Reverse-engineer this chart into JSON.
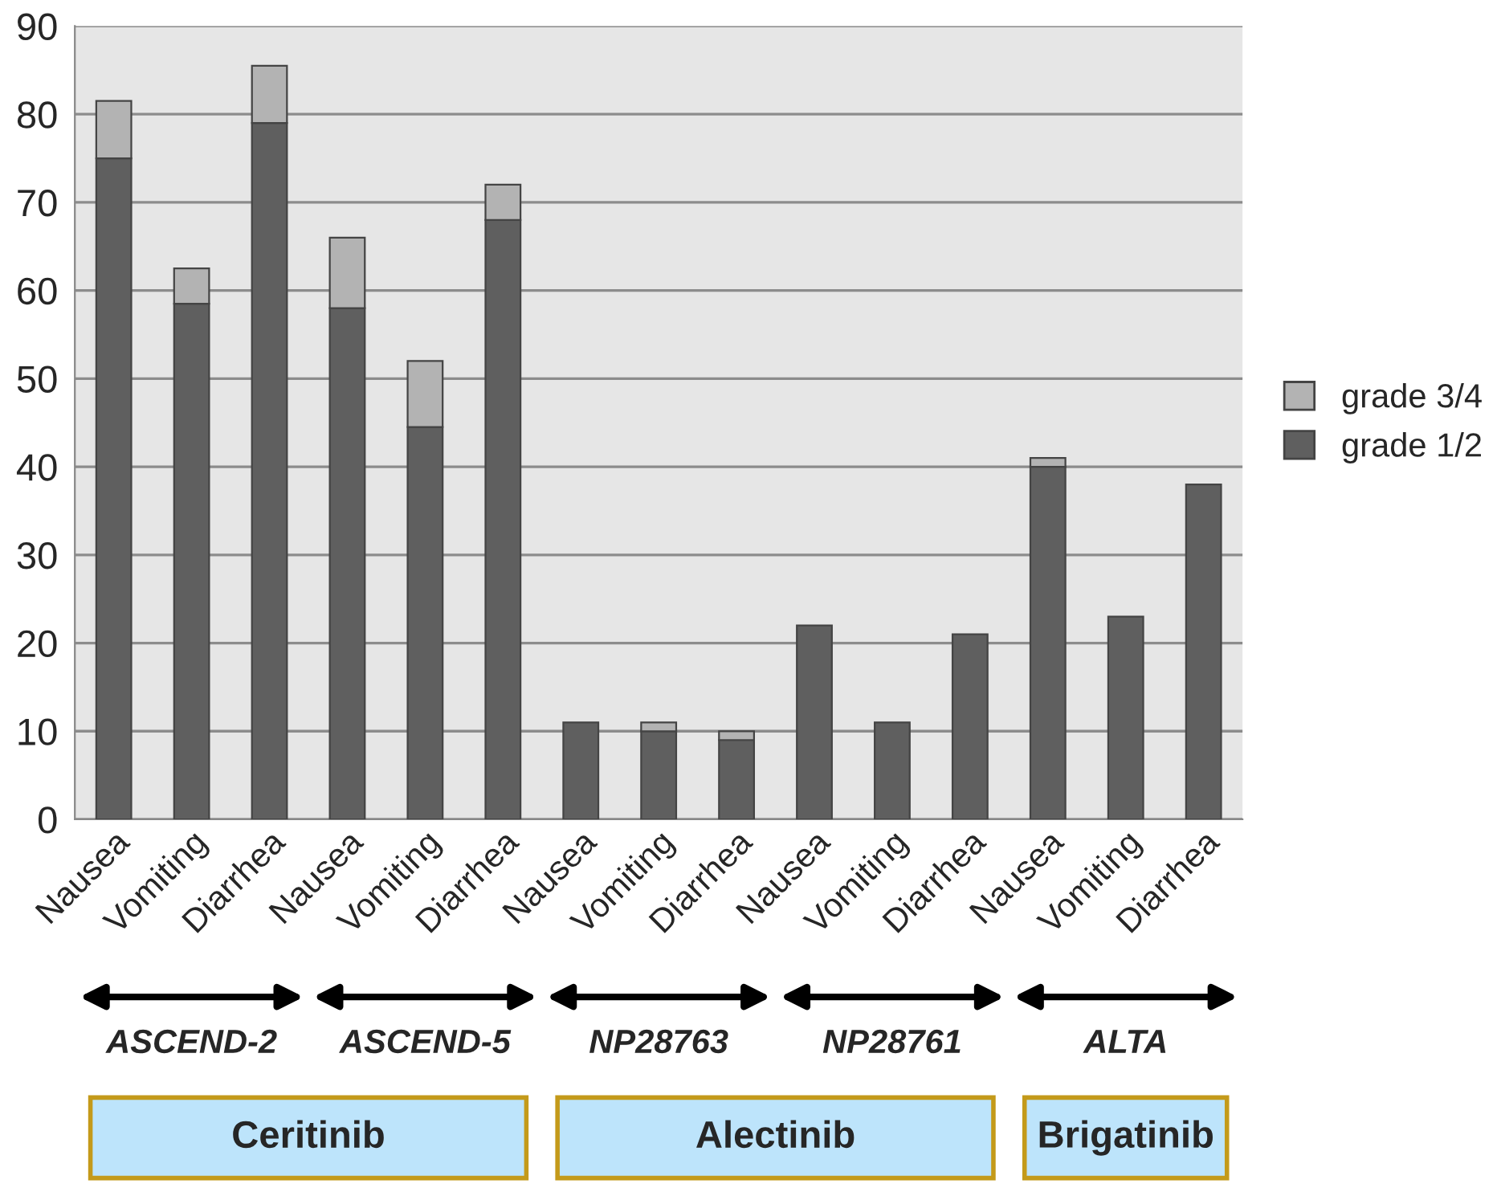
{
  "chart_data": {
    "type": "bar",
    "stacked": true,
    "categories": [
      "Nausea",
      "Vomiting",
      "Diarrhea",
      "Nausea",
      "Vomiting",
      "Diarrhea",
      "Nausea",
      "Vomiting",
      "Diarrhea",
      "Nausea",
      "Vomiting",
      "Diarrhea",
      "Nausea",
      "Vomiting",
      "Diarrhea"
    ],
    "series": [
      {
        "name": "grade 1/2",
        "color": "#5f5f5f",
        "values": [
          75,
          58.5,
          79,
          58,
          44.5,
          68,
          11,
          10,
          9,
          22,
          11,
          21,
          40,
          23,
          38
        ]
      },
      {
        "name": "grade 3/4",
        "color": "#b3b3b3",
        "values": [
          6.5,
          4,
          6.5,
          8,
          7.5,
          4,
          null,
          1,
          1,
          null,
          null,
          null,
          1,
          null,
          null
        ]
      }
    ],
    "ylim": [
      0,
      90
    ],
    "yticks": [
      0,
      10,
      20,
      30,
      40,
      50,
      60,
      70,
      80,
      90
    ],
    "grid": "y",
    "legend": "right",
    "annotations": [
      "ASCEND-2",
      "ASCEND-5",
      "NP28763",
      "NP28761",
      "ALTA",
      "Ceritinib",
      "Alectinib",
      "Brigatinib"
    ]
  }
}
